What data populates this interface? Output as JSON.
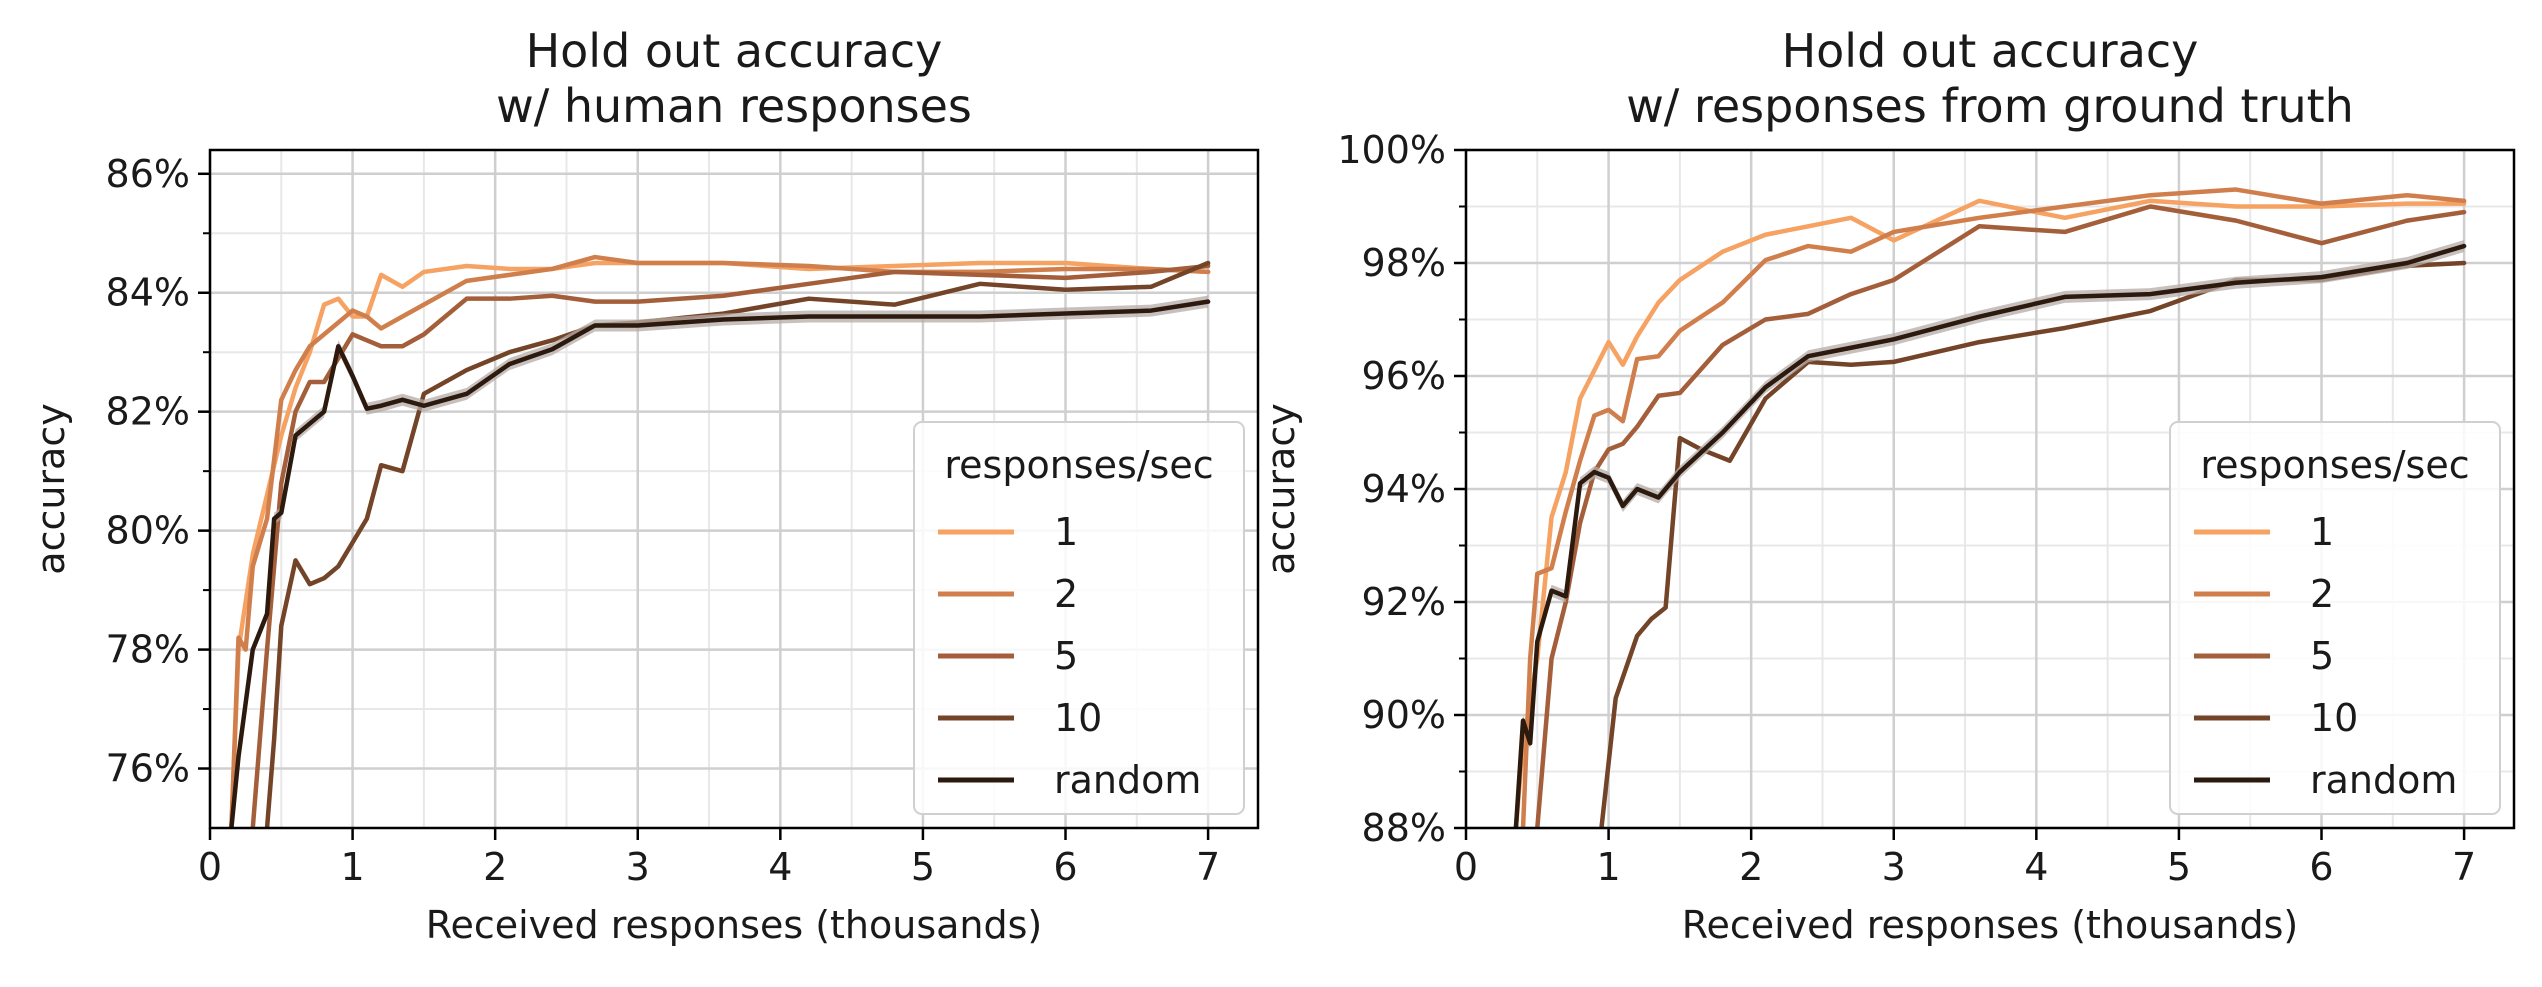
{
  "colors": {
    "1": "#f5a262",
    "2": "#d07f4c",
    "5": "#a45e3a",
    "10": "#744428",
    "random": "#2c1a0f",
    "band": "#b5aba6",
    "grid_major": "#cfcfcf",
    "grid_minor": "#e8e8e8"
  },
  "chart_data": [
    {
      "type": "line",
      "title": "Hold out accuracy\nw/ human responses",
      "xlabel": "Received responses (thousands)",
      "ylabel": "accuracy",
      "xlim": [
        0,
        7.35
      ],
      "ylim": [
        75,
        86.4
      ],
      "xticks": [
        "0",
        "1",
        "2",
        "3",
        "4",
        "5",
        "6",
        "7"
      ],
      "yticks": [
        "76%",
        "78%",
        "80%",
        "82%",
        "84%",
        "86%"
      ],
      "ytick_values": [
        76,
        78,
        80,
        82,
        84,
        86
      ],
      "grid": true,
      "legend": {
        "title": "responses/sec",
        "position": "lower right"
      },
      "series": [
        {
          "name": "1",
          "x": [
            0.15,
            0.2,
            0.3,
            0.4,
            0.5,
            0.6,
            0.7,
            0.8,
            0.9,
            1.0,
            1.1,
            1.2,
            1.35,
            1.5,
            1.8,
            2.1,
            2.4,
            2.7,
            3.0,
            3.6,
            4.2,
            4.8,
            5.4,
            6.0,
            6.6,
            7.0
          ],
          "y": [
            75.0,
            78.0,
            79.6,
            80.6,
            81.6,
            82.4,
            83.0,
            83.8,
            83.9,
            83.6,
            83.6,
            84.3,
            84.1,
            84.35,
            84.45,
            84.4,
            84.4,
            84.5,
            84.5,
            84.5,
            84.4,
            84.45,
            84.5,
            84.5,
            84.4,
            84.35
          ]
        },
        {
          "name": "2",
          "x": [
            0.15,
            0.2,
            0.25,
            0.3,
            0.4,
            0.5,
            0.6,
            0.7,
            0.8,
            0.9,
            1.0,
            1.1,
            1.2,
            1.35,
            1.5,
            1.8,
            2.1,
            2.4,
            2.7,
            3.0,
            3.6,
            4.2,
            4.8,
            5.4,
            6.0,
            6.6,
            7.0
          ],
          "y": [
            75.0,
            78.2,
            78.0,
            79.4,
            80.2,
            82.2,
            82.7,
            83.1,
            83.3,
            83.5,
            83.7,
            83.6,
            83.4,
            83.6,
            83.8,
            84.2,
            84.3,
            84.4,
            84.6,
            84.5,
            84.5,
            84.45,
            84.35,
            84.35,
            84.4,
            84.4,
            84.35
          ]
        },
        {
          "name": "5",
          "x": [
            0.3,
            0.4,
            0.5,
            0.6,
            0.7,
            0.8,
            0.9,
            1.0,
            1.1,
            1.2,
            1.35,
            1.5,
            1.8,
            2.1,
            2.4,
            2.7,
            3.0,
            3.6,
            4.2,
            4.8,
            5.4,
            6.0,
            6.6,
            7.0
          ],
          "y": [
            75.0,
            78.0,
            80.8,
            82.0,
            82.5,
            82.5,
            82.9,
            83.3,
            83.2,
            83.1,
            83.1,
            83.3,
            83.9,
            83.9,
            83.95,
            83.85,
            83.85,
            83.95,
            84.15,
            84.35,
            84.3,
            84.25,
            84.35,
            84.45
          ]
        },
        {
          "name": "10",
          "x": [
            0.4,
            0.45,
            0.5,
            0.6,
            0.7,
            0.8,
            0.9,
            1.0,
            1.1,
            1.2,
            1.35,
            1.5,
            1.8,
            2.1,
            2.4,
            2.7,
            3.0,
            3.6,
            4.2,
            4.8,
            5.4,
            6.0,
            6.6,
            7.0
          ],
          "y": [
            75.0,
            76.5,
            78.4,
            79.5,
            79.1,
            79.2,
            79.4,
            79.8,
            80.2,
            81.1,
            81.0,
            82.3,
            82.7,
            83.0,
            83.2,
            83.45,
            83.5,
            83.65,
            83.9,
            83.8,
            84.15,
            84.05,
            84.1,
            84.5
          ]
        },
        {
          "name": "random",
          "x": [
            0.15,
            0.2,
            0.3,
            0.4,
            0.45,
            0.5,
            0.6,
            0.7,
            0.8,
            0.9,
            1.0,
            1.1,
            1.2,
            1.35,
            1.5,
            1.8,
            2.1,
            2.4,
            2.7,
            3.0,
            3.6,
            4.2,
            4.8,
            5.4,
            6.0,
            6.6,
            7.0
          ],
          "y": [
            75.0,
            76.2,
            78.0,
            78.6,
            80.2,
            80.3,
            81.6,
            81.8,
            82.0,
            83.1,
            82.6,
            82.05,
            82.1,
            82.2,
            82.1,
            82.3,
            82.8,
            83.05,
            83.45,
            83.45,
            83.55,
            83.6,
            83.6,
            83.6,
            83.65,
            83.7,
            83.85
          ]
        }
      ]
    },
    {
      "type": "line",
      "title": "Hold out accuracy\nw/ responses from ground truth",
      "xlabel": "Received responses (thousands)",
      "ylabel": "accuracy",
      "xlim": [
        0,
        7.35
      ],
      "ylim": [
        88,
        100
      ],
      "xticks": [
        "0",
        "1",
        "2",
        "3",
        "4",
        "5",
        "6",
        "7"
      ],
      "yticks": [
        "88%",
        "90%",
        "92%",
        "94%",
        "96%",
        "98%",
        "100%"
      ],
      "ytick_values": [
        88,
        90,
        92,
        94,
        96,
        98,
        100
      ],
      "grid": true,
      "legend": {
        "title": "responses/sec",
        "position": "lower right"
      },
      "series": [
        {
          "name": "1",
          "x": [
            0.35,
            0.4,
            0.5,
            0.6,
            0.7,
            0.8,
            0.9,
            1.0,
            1.1,
            1.2,
            1.35,
            1.5,
            1.8,
            2.1,
            2.4,
            2.7,
            3.0,
            3.6,
            4.2,
            4.8,
            5.4,
            6.0,
            6.6,
            7.0
          ],
          "y": [
            88.0,
            89.5,
            91.0,
            93.5,
            94.3,
            95.6,
            96.1,
            96.6,
            96.2,
            96.7,
            97.3,
            97.7,
            98.2,
            98.5,
            98.65,
            98.8,
            98.4,
            99.1,
            98.8,
            99.1,
            99.0,
            99.0,
            99.05,
            99.05
          ]
        },
        {
          "name": "2",
          "x": [
            0.4,
            0.45,
            0.5,
            0.6,
            0.7,
            0.8,
            0.9,
            1.0,
            1.1,
            1.2,
            1.35,
            1.5,
            1.8,
            2.1,
            2.4,
            2.7,
            3.0,
            3.6,
            4.2,
            4.8,
            5.4,
            6.0,
            6.6,
            7.0
          ],
          "y": [
            88.0,
            91.0,
            92.5,
            92.6,
            93.6,
            94.5,
            95.3,
            95.4,
            95.2,
            96.3,
            96.35,
            96.8,
            97.3,
            98.05,
            98.3,
            98.2,
            98.55,
            98.8,
            99.0,
            99.2,
            99.3,
            99.05,
            99.2,
            99.1
          ]
        },
        {
          "name": "5",
          "x": [
            0.5,
            0.55,
            0.6,
            0.7,
            0.8,
            0.9,
            1.0,
            1.1,
            1.2,
            1.35,
            1.5,
            1.8,
            2.1,
            2.4,
            2.7,
            3.0,
            3.6,
            4.2,
            4.8,
            5.4,
            6.0,
            6.6,
            7.0
          ],
          "y": [
            88.0,
            89.5,
            91.0,
            92.0,
            93.4,
            94.3,
            94.7,
            94.8,
            95.1,
            95.65,
            95.7,
            96.55,
            97.0,
            97.1,
            97.45,
            97.7,
            98.65,
            98.55,
            99.0,
            98.75,
            98.35,
            98.75,
            98.9
          ]
        },
        {
          "name": "10",
          "x": [
            0.95,
            1.05,
            1.2,
            1.3,
            1.4,
            1.5,
            1.65,
            1.85,
            2.1,
            2.4,
            2.7,
            3.0,
            3.6,
            4.2,
            4.8,
            5.4,
            6.0,
            6.6,
            7.0
          ],
          "y": [
            88.0,
            90.3,
            91.4,
            91.7,
            91.9,
            94.9,
            94.7,
            94.5,
            95.6,
            96.25,
            96.2,
            96.25,
            96.6,
            96.85,
            97.15,
            97.7,
            97.7,
            97.95,
            98.0
          ]
        },
        {
          "name": "random",
          "x": [
            0.35,
            0.4,
            0.45,
            0.5,
            0.6,
            0.7,
            0.8,
            0.9,
            1.0,
            1.1,
            1.2,
            1.35,
            1.5,
            1.8,
            2.1,
            2.4,
            2.7,
            3.0,
            3.6,
            4.2,
            4.8,
            5.4,
            6.0,
            6.6,
            7.0
          ],
          "y": [
            88.0,
            89.9,
            89.5,
            91.3,
            92.2,
            92.1,
            94.1,
            94.3,
            94.2,
            93.7,
            94.0,
            93.85,
            94.3,
            95.0,
            95.8,
            96.35,
            96.5,
            96.65,
            97.05,
            97.4,
            97.45,
            97.65,
            97.75,
            98.0,
            98.3
          ]
        }
      ]
    }
  ]
}
